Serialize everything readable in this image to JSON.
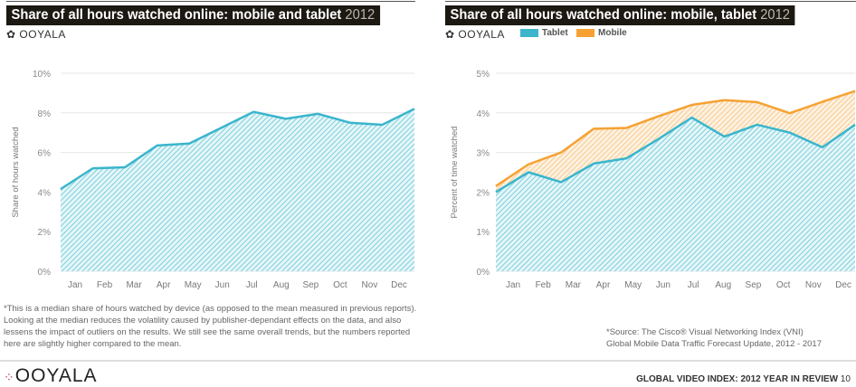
{
  "left": {
    "title": "Share of all hours watched online: mobile and tablet",
    "title_year": "2012",
    "brand": "OOYALA",
    "footnote": "*This is a median share of hours watched by device (as opposed to the mean measured in previous reports). Looking at the median reduces the volatility caused by publisher-dependant effects on the data, and also lessens the impact of outliers on the results. We still see the same overall trends, but the numbers reported here are slightly higher compared to the mean."
  },
  "right": {
    "title": "Share of all hours watched online: mobile, tablet",
    "title_year": "2012",
    "brand": "OOYALA",
    "source_line1": "*Source: The Cisco® Visual Networking Index (VNI)",
    "source_line2": "Global Mobile Data Traffic Forecast Update, 2012 - 2017"
  },
  "footer": {
    "brand": "OOYALA",
    "report": "GLOBAL VIDEO INDEX: 2012 YEAR IN REVIEW",
    "page": "10"
  },
  "chart_data": [
    {
      "type": "area",
      "title": "Share of all hours watched online: mobile and tablet 2012",
      "xlabel": "",
      "ylabel": "Share of hours watched",
      "categories": [
        "Jan",
        "Feb",
        "Mar",
        "Apr",
        "May",
        "Jun",
        "Jul",
        "Aug",
        "Sep",
        "Oct",
        "Nov",
        "Dec"
      ],
      "yticks": [
        "0%",
        "2%",
        "4%",
        "6%",
        "8%",
        "10%"
      ],
      "ylim": [
        0,
        10
      ],
      "grid": true,
      "color": "#3ab5cc",
      "series": [
        {
          "values": [
            4.15,
            5.2,
            5.25,
            6.35,
            6.45,
            7.25,
            8.05,
            7.7,
            7.95,
            7.5,
            7.4,
            8.2
          ]
        }
      ]
    },
    {
      "type": "area",
      "stacked": true,
      "title": "Share of all hours watched online: mobile, tablet 2012",
      "xlabel": "",
      "ylabel": "Percent of time watched",
      "categories": [
        "Jan",
        "Feb",
        "Mar",
        "Apr",
        "May",
        "Jun",
        "Jul",
        "Aug",
        "Sep",
        "Oct",
        "Nov",
        "Dec"
      ],
      "yticks": [
        "0%",
        "1%",
        "2%",
        "3%",
        "4%",
        "5%"
      ],
      "ylim": [
        0,
        5
      ],
      "grid": true,
      "legend": "top-left",
      "series": [
        {
          "name": "Tablet",
          "color": "#3ab5cc",
          "values": [
            2.0,
            2.5,
            2.25,
            2.72,
            2.85,
            3.35,
            3.88,
            3.4,
            3.7,
            3.5,
            3.13,
            3.7
          ]
        },
        {
          "name": "Mobile",
          "color": "#f5a233",
          "values": [
            0.15,
            0.2,
            0.75,
            0.88,
            0.77,
            0.57,
            0.32,
            0.92,
            0.57,
            0.49,
            1.15,
            0.85
          ]
        }
      ]
    }
  ]
}
